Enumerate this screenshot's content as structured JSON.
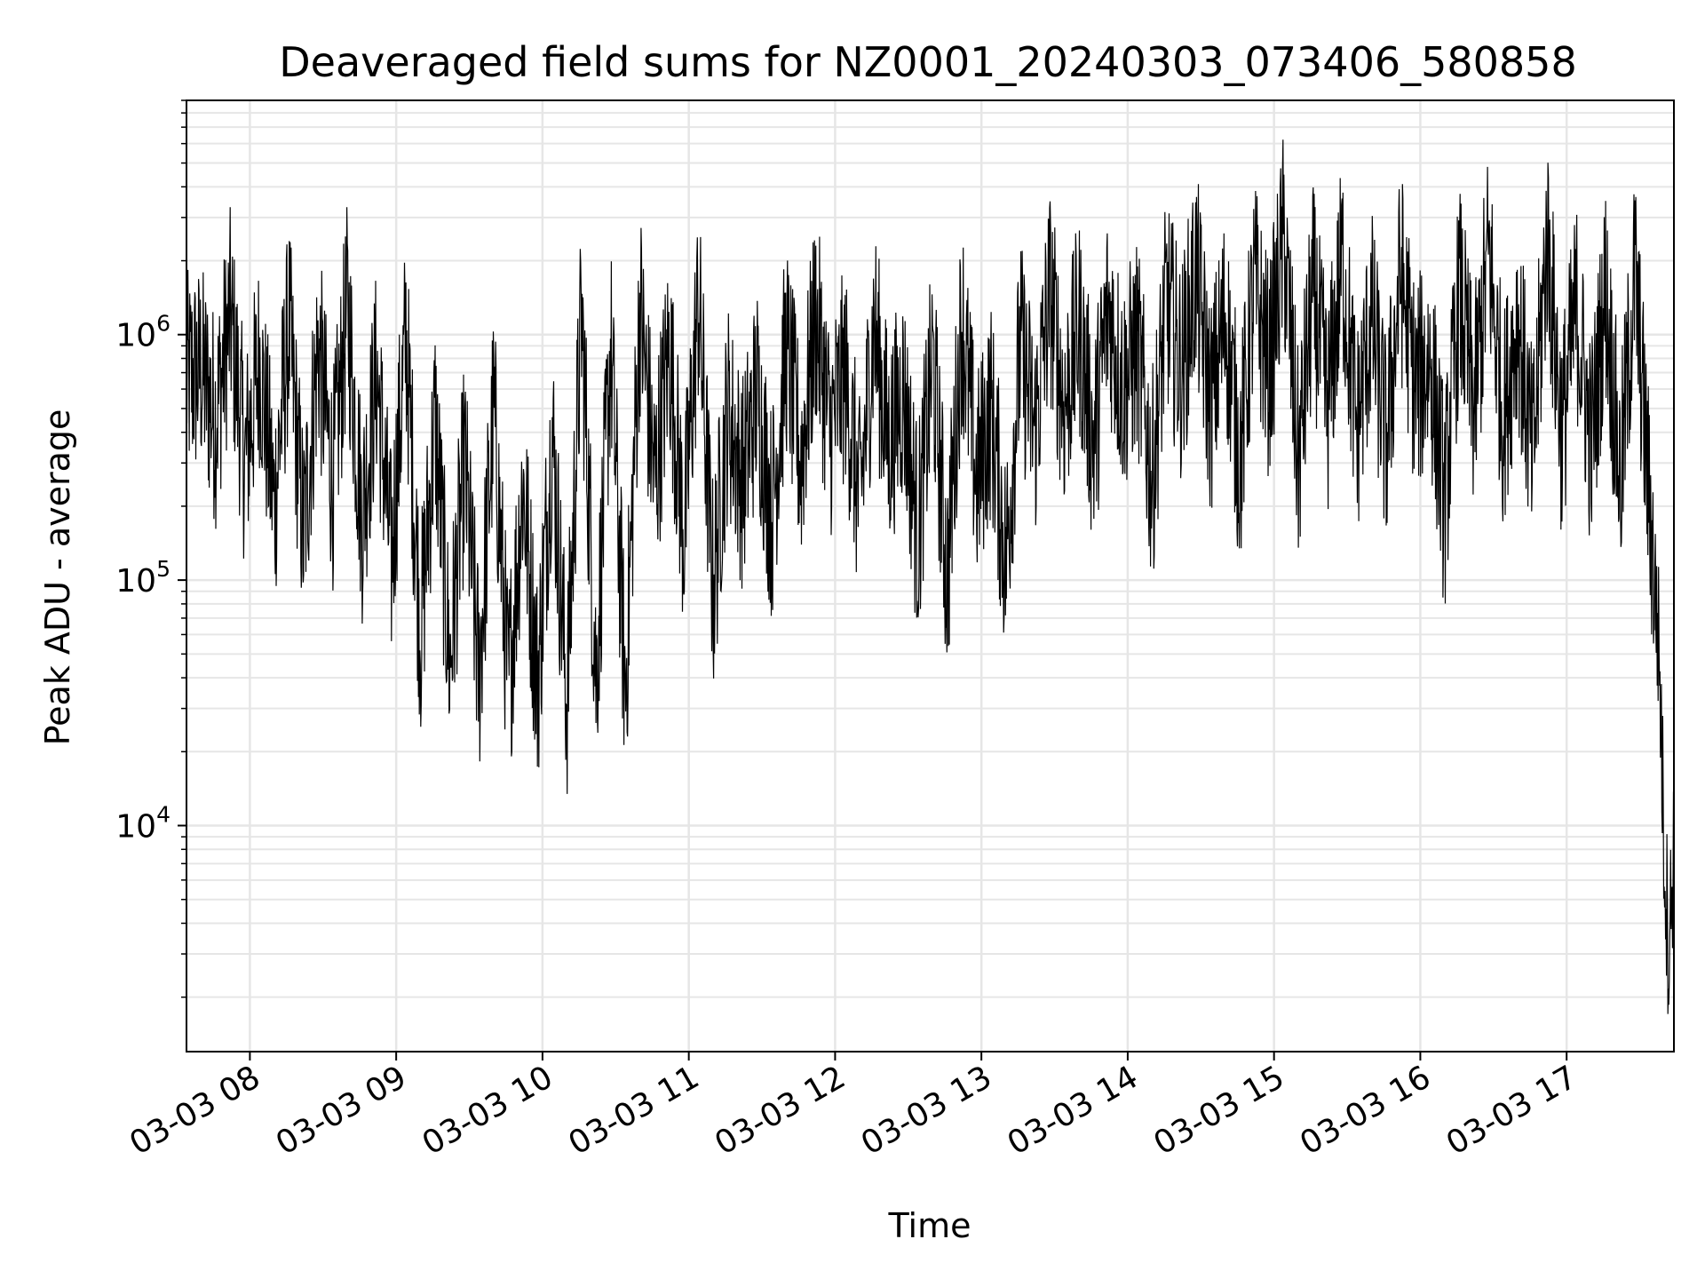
{
  "chart_data": {
    "type": "line",
    "title": "Deaveraged field sums for NZ0001_20240303_073406_580858",
    "xlabel": "Time",
    "ylabel": "Peak ADU - average",
    "y_scale": "log",
    "grid": true,
    "xlim": [
      "03-03 07:34",
      "03-03 17:44"
    ],
    "ylim": [
      1200,
      9000000
    ],
    "x_ticks": [
      "03-03 08",
      "03-03 09",
      "03-03 10",
      "03-03 11",
      "03-03 12",
      "03-03 13",
      "03-03 14",
      "03-03 15",
      "03-03 16",
      "03-03 17"
    ],
    "y_ticks": [
      {
        "base": "10",
        "exp": "4",
        "value": 10000
      },
      {
        "base": "10",
        "exp": "5",
        "value": 100000
      },
      {
        "base": "10",
        "exp": "6",
        "value": 1000000
      }
    ],
    "line_color": "#000000",
    "grid_color": "#e6e6e6",
    "series": [
      {
        "x": [
          "03-03 07:34",
          "03-03 07:40",
          "03-03 07:46",
          "03-03 07:52",
          "03-03 07:58",
          "03-03 08:04",
          "03-03 08:10",
          "03-03 08:16",
          "03-03 08:22",
          "03-03 08:28",
          "03-03 08:34",
          "03-03 08:40",
          "03-03 08:46",
          "03-03 08:52",
          "03-03 08:58",
          "03-03 09:04",
          "03-03 09:10",
          "03-03 09:16",
          "03-03 09:22",
          "03-03 09:28",
          "03-03 09:34",
          "03-03 09:40",
          "03-03 09:46",
          "03-03 09:52",
          "03-03 09:58",
          "03-03 10:04",
          "03-03 10:10",
          "03-03 10:16",
          "03-03 10:22",
          "03-03 10:28",
          "03-03 10:34",
          "03-03 10:40",
          "03-03 10:46",
          "03-03 10:52",
          "03-03 10:58",
          "03-03 11:04",
          "03-03 11:10",
          "03-03 11:16",
          "03-03 11:22",
          "03-03 11:28",
          "03-03 11:34",
          "03-03 11:40",
          "03-03 11:46",
          "03-03 11:52",
          "03-03 11:58",
          "03-03 12:04",
          "03-03 12:10",
          "03-03 12:16",
          "03-03 12:22",
          "03-03 12:28",
          "03-03 12:34",
          "03-03 12:40",
          "03-03 12:46",
          "03-03 12:52",
          "03-03 12:58",
          "03-03 13:04",
          "03-03 13:10",
          "03-03 13:16",
          "03-03 13:22",
          "03-03 13:28",
          "03-03 13:34",
          "03-03 13:40",
          "03-03 13:46",
          "03-03 13:52",
          "03-03 13:58",
          "03-03 14:04",
          "03-03 14:10",
          "03-03 14:16",
          "03-03 14:22",
          "03-03 14:28",
          "03-03 14:34",
          "03-03 14:40",
          "03-03 14:46",
          "03-03 14:52",
          "03-03 14:58",
          "03-03 15:04",
          "03-03 15:10",
          "03-03 15:16",
          "03-03 15:22",
          "03-03 15:28",
          "03-03 15:34",
          "03-03 15:40",
          "03-03 15:46",
          "03-03 15:52",
          "03-03 15:58",
          "03-03 16:04",
          "03-03 16:10",
          "03-03 16:16",
          "03-03 16:22",
          "03-03 16:28",
          "03-03 16:34",
          "03-03 16:40",
          "03-03 16:46",
          "03-03 16:52",
          "03-03 16:58",
          "03-03 17:04",
          "03-03 17:10",
          "03-03 17:16",
          "03-03 17:22",
          "03-03 17:28",
          "03-03 17:34",
          "03-03 17:36",
          "03-03 17:38",
          "03-03 17:40",
          "03-03 17:42",
          "03-03 17:44"
        ],
        "y": [
          650000,
          720000,
          450000,
          1200000,
          300000,
          800000,
          200000,
          1100000,
          150000,
          900000,
          250000,
          1300000,
          180000,
          700000,
          120000,
          1000000,
          60000,
          450000,
          45000,
          300000,
          40000,
          500000,
          35000,
          250000,
          38000,
          400000,
          32000,
          1200000,
          40000,
          900000,
          35000,
          1300000,
          250000,
          900000,
          150000,
          1400000,
          90000,
          500000,
          250000,
          600000,
          180000,
          900000,
          300000,
          1200000,
          400000,
          700000,
          200000,
          1100000,
          350000,
          600000,
          150000,
          800000,
          100000,
          1200000,
          250000,
          500000,
          120000,
          900000,
          400000,
          1500000,
          500000,
          1100000,
          350000,
          1300000,
          600000,
          900000,
          250000,
          1400000,
          700000,
          1800000,
          500000,
          1200000,
          300000,
          1600000,
          700000,
          2500000,
          300000,
          1500000,
          500000,
          2000000,
          400000,
          1200000,
          350000,
          1800000,
          600000,
          800000,
          200000,
          1500000,
          500000,
          2200000,
          450000,
          1200000,
          300000,
          2500000,
          400000,
          1300000,
          350000,
          1500000,
          250000,
          1800000,
          200000,
          100000,
          50000,
          8000,
          3000,
          9000
        ]
      }
    ]
  }
}
